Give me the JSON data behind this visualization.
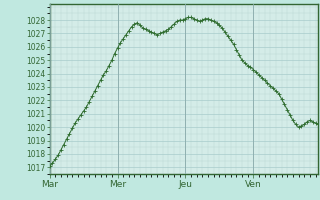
{
  "bg_color": "#c0e8e0",
  "plot_bg_color": "#d4ece8",
  "line_color": "#2d6b2d",
  "marker_color": "#2d6b2d",
  "grid_major_color": "#a8cccc",
  "grid_minor_color": "#b8d8d4",
  "spine_color": "#336633",
  "tick_label_color": "#336633",
  "xlabel_color": "#336633",
  "ylim": [
    1016.5,
    1029.2
  ],
  "yticks": [
    1017,
    1018,
    1019,
    1020,
    1021,
    1022,
    1023,
    1024,
    1025,
    1026,
    1027,
    1028
  ],
  "xtick_labels": [
    "Mar",
    "Mer",
    "Jeu",
    "Ven"
  ],
  "xtick_positions": [
    0,
    24,
    48,
    72
  ],
  "xlim": [
    0,
    95
  ],
  "data_x": [
    0,
    1,
    2,
    3,
    4,
    5,
    6,
    7,
    8,
    9,
    10,
    11,
    12,
    13,
    14,
    15,
    16,
    17,
    18,
    19,
    20,
    21,
    22,
    23,
    24,
    25,
    26,
    27,
    28,
    29,
    30,
    31,
    32,
    33,
    34,
    35,
    36,
    37,
    38,
    39,
    40,
    41,
    42,
    43,
    44,
    45,
    46,
    47,
    48,
    49,
    50,
    51,
    52,
    53,
    54,
    55,
    56,
    57,
    58,
    59,
    60,
    61,
    62,
    63,
    64,
    65,
    66,
    67,
    68,
    69,
    70,
    71,
    72,
    73,
    74,
    75,
    76,
    77,
    78,
    79,
    80,
    81,
    82,
    83,
    84,
    85,
    86,
    87,
    88,
    89,
    90,
    91,
    92,
    93,
    94,
    95
  ],
  "data_y": [
    1017.1,
    1017.3,
    1017.6,
    1017.9,
    1018.3,
    1018.7,
    1019.1,
    1019.5,
    1019.9,
    1020.3,
    1020.6,
    1020.9,
    1021.2,
    1021.5,
    1021.9,
    1022.3,
    1022.7,
    1023.1,
    1023.5,
    1023.9,
    1024.2,
    1024.6,
    1025.0,
    1025.5,
    1025.9,
    1026.3,
    1026.6,
    1026.9,
    1027.2,
    1027.5,
    1027.7,
    1027.8,
    1027.6,
    1027.4,
    1027.3,
    1027.2,
    1027.1,
    1027.0,
    1026.9,
    1027.0,
    1027.1,
    1027.2,
    1027.3,
    1027.5,
    1027.7,
    1027.9,
    1028.0,
    1028.0,
    1028.1,
    1028.2,
    1028.2,
    1028.1,
    1028.0,
    1027.9,
    1028.0,
    1028.1,
    1028.1,
    1028.0,
    1027.9,
    1027.8,
    1027.6,
    1027.4,
    1027.1,
    1026.8,
    1026.5,
    1026.2,
    1025.8,
    1025.4,
    1025.0,
    1024.8,
    1024.6,
    1024.5,
    1024.3,
    1024.1,
    1023.9,
    1023.7,
    1023.5,
    1023.3,
    1023.1,
    1022.9,
    1022.7,
    1022.5,
    1022.1,
    1021.7,
    1021.3,
    1020.9,
    1020.5,
    1020.2,
    1020.0,
    1020.1,
    1020.2,
    1020.4,
    1020.5,
    1020.4,
    1020.3,
    1020.2
  ]
}
